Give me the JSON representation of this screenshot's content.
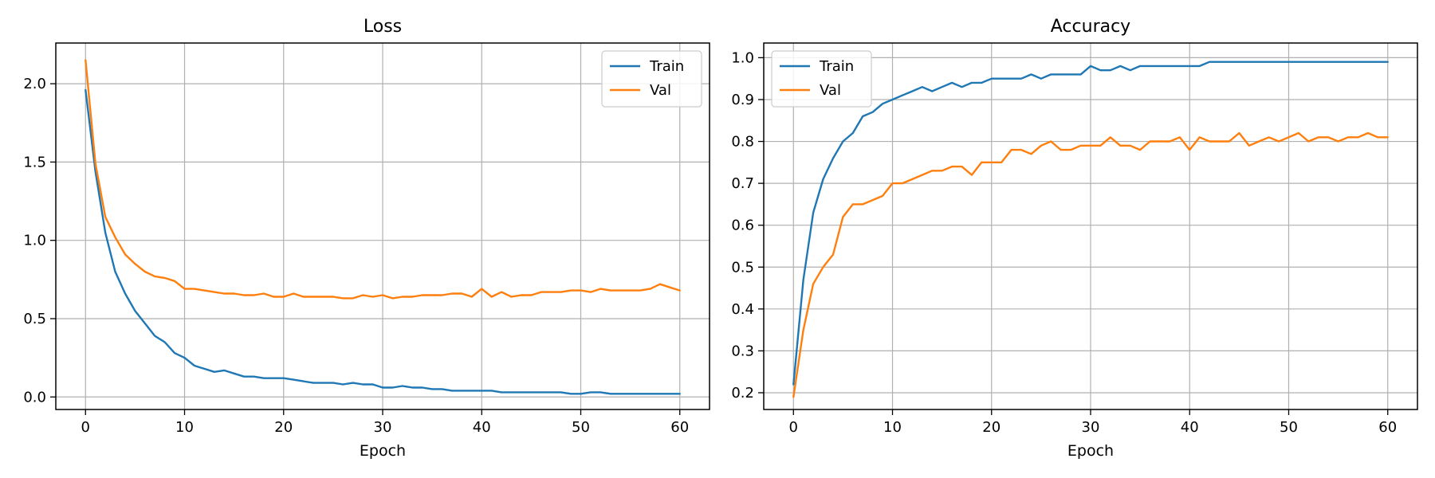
{
  "chart_data": [
    {
      "type": "line",
      "title": "Loss",
      "xlabel": "Epoch",
      "ylabel": "",
      "xlim": [
        -3,
        63
      ],
      "ylim": [
        -0.08,
        2.26
      ],
      "xticks": [
        0,
        10,
        20,
        30,
        40,
        50,
        60
      ],
      "yticks": [
        0.0,
        0.5,
        1.0,
        1.5,
        2.0
      ],
      "ytick_labels": [
        "0.0",
        "0.5",
        "1.0",
        "1.5",
        "2.0"
      ],
      "grid": true,
      "legend": "top-right",
      "x": [
        0,
        1,
        2,
        3,
        4,
        5,
        6,
        7,
        8,
        9,
        10,
        11,
        12,
        13,
        14,
        15,
        16,
        17,
        18,
        19,
        20,
        21,
        22,
        23,
        24,
        25,
        26,
        27,
        28,
        29,
        30,
        31,
        32,
        33,
        34,
        35,
        36,
        37,
        38,
        39,
        40,
        41,
        42,
        43,
        44,
        45,
        46,
        47,
        48,
        49,
        50,
        51,
        52,
        53,
        54,
        55,
        56,
        57,
        58,
        59,
        60
      ],
      "series": [
        {
          "name": "Train",
          "color": "#1f77b4",
          "values": [
            1.96,
            1.44,
            1.05,
            0.8,
            0.66,
            0.55,
            0.47,
            0.39,
            0.35,
            0.28,
            0.25,
            0.2,
            0.18,
            0.16,
            0.17,
            0.15,
            0.13,
            0.13,
            0.12,
            0.12,
            0.12,
            0.11,
            0.1,
            0.09,
            0.09,
            0.09,
            0.08,
            0.09,
            0.08,
            0.08,
            0.06,
            0.06,
            0.07,
            0.06,
            0.06,
            0.05,
            0.05,
            0.04,
            0.04,
            0.04,
            0.04,
            0.04,
            0.03,
            0.03,
            0.03,
            0.03,
            0.03,
            0.03,
            0.03,
            0.02,
            0.02,
            0.03,
            0.03,
            0.02,
            0.02,
            0.02,
            0.02,
            0.02,
            0.02,
            0.02,
            0.02
          ]
        },
        {
          "name": "Val",
          "color": "#ff7f0e",
          "values": [
            2.15,
            1.49,
            1.15,
            1.02,
            0.91,
            0.85,
            0.8,
            0.77,
            0.76,
            0.74,
            0.69,
            0.69,
            0.68,
            0.67,
            0.66,
            0.66,
            0.65,
            0.65,
            0.66,
            0.64,
            0.64,
            0.66,
            0.64,
            0.64,
            0.64,
            0.64,
            0.63,
            0.63,
            0.65,
            0.64,
            0.65,
            0.63,
            0.64,
            0.64,
            0.65,
            0.65,
            0.65,
            0.66,
            0.66,
            0.64,
            0.69,
            0.64,
            0.67,
            0.64,
            0.65,
            0.65,
            0.67,
            0.67,
            0.67,
            0.68,
            0.68,
            0.67,
            0.69,
            0.68,
            0.68,
            0.68,
            0.68,
            0.69,
            0.72,
            0.7,
            0.68
          ]
        }
      ]
    },
    {
      "type": "line",
      "title": "Accuracy",
      "xlabel": "Epoch",
      "ylabel": "",
      "xlim": [
        -3,
        63
      ],
      "ylim": [
        0.16,
        1.035
      ],
      "xticks": [
        0,
        10,
        20,
        30,
        40,
        50,
        60
      ],
      "yticks": [
        0.2,
        0.3,
        0.4,
        0.5,
        0.6,
        0.7,
        0.8,
        0.9,
        1.0
      ],
      "ytick_labels": [
        "0.2",
        "0.3",
        "0.4",
        "0.5",
        "0.6",
        "0.7",
        "0.8",
        "0.9",
        "1.0"
      ],
      "grid": true,
      "legend": "top-left",
      "x": [
        0,
        1,
        2,
        3,
        4,
        5,
        6,
        7,
        8,
        9,
        10,
        11,
        12,
        13,
        14,
        15,
        16,
        17,
        18,
        19,
        20,
        21,
        22,
        23,
        24,
        25,
        26,
        27,
        28,
        29,
        30,
        31,
        32,
        33,
        34,
        35,
        36,
        37,
        38,
        39,
        40,
        41,
        42,
        43,
        44,
        45,
        46,
        47,
        48,
        49,
        50,
        51,
        52,
        53,
        54,
        55,
        56,
        57,
        58,
        59,
        60
      ],
      "series": [
        {
          "name": "Train",
          "color": "#1f77b4",
          "values": [
            0.22,
            0.47,
            0.63,
            0.71,
            0.76,
            0.8,
            0.82,
            0.86,
            0.87,
            0.89,
            0.9,
            0.91,
            0.92,
            0.93,
            0.92,
            0.93,
            0.94,
            0.93,
            0.94,
            0.94,
            0.95,
            0.95,
            0.95,
            0.95,
            0.96,
            0.95,
            0.96,
            0.96,
            0.96,
            0.96,
            0.98,
            0.97,
            0.97,
            0.98,
            0.97,
            0.98,
            0.98,
            0.98,
            0.98,
            0.98,
            0.98,
            0.98,
            0.99,
            0.99,
            0.99,
            0.99,
            0.99,
            0.99,
            0.99,
            0.99,
            0.99,
            0.99,
            0.99,
            0.99,
            0.99,
            0.99,
            0.99,
            0.99,
            0.99,
            0.99,
            0.99
          ]
        },
        {
          "name": "Val",
          "color": "#ff7f0e",
          "values": [
            0.19,
            0.35,
            0.46,
            0.5,
            0.53,
            0.62,
            0.65,
            0.65,
            0.66,
            0.67,
            0.7,
            0.7,
            0.71,
            0.72,
            0.73,
            0.73,
            0.74,
            0.74,
            0.72,
            0.75,
            0.75,
            0.75,
            0.78,
            0.78,
            0.77,
            0.79,
            0.8,
            0.78,
            0.78,
            0.79,
            0.79,
            0.79,
            0.81,
            0.79,
            0.79,
            0.78,
            0.8,
            0.8,
            0.8,
            0.81,
            0.78,
            0.81,
            0.8,
            0.8,
            0.8,
            0.82,
            0.79,
            0.8,
            0.81,
            0.8,
            0.81,
            0.82,
            0.8,
            0.81,
            0.81,
            0.8,
            0.81,
            0.81,
            0.82,
            0.81,
            0.81
          ]
        }
      ]
    }
  ]
}
